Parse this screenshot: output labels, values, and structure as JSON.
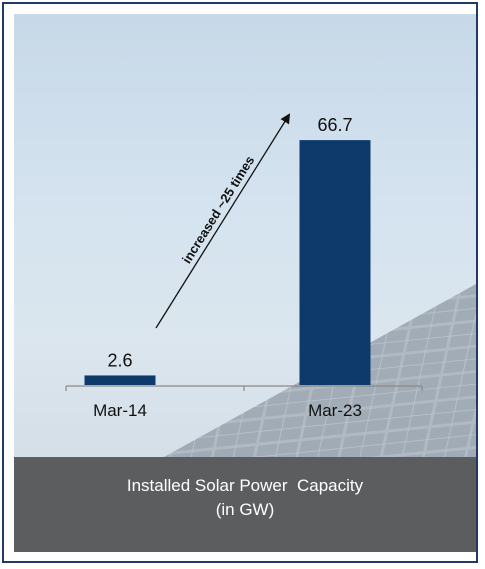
{
  "chart_data": {
    "type": "bar",
    "categories": [
      "Mar-14",
      "Mar-23"
    ],
    "values": [
      2.6,
      66.7
    ],
    "data_labels": [
      "2.6",
      "66.7"
    ],
    "title_line1": "Installed Solar Power  Capacity",
    "title_line2": "(in GW)",
    "annotation": "increased ~25 times",
    "ylim": [
      0,
      70
    ],
    "grid": false,
    "bar_color": "#0d3a6b"
  }
}
